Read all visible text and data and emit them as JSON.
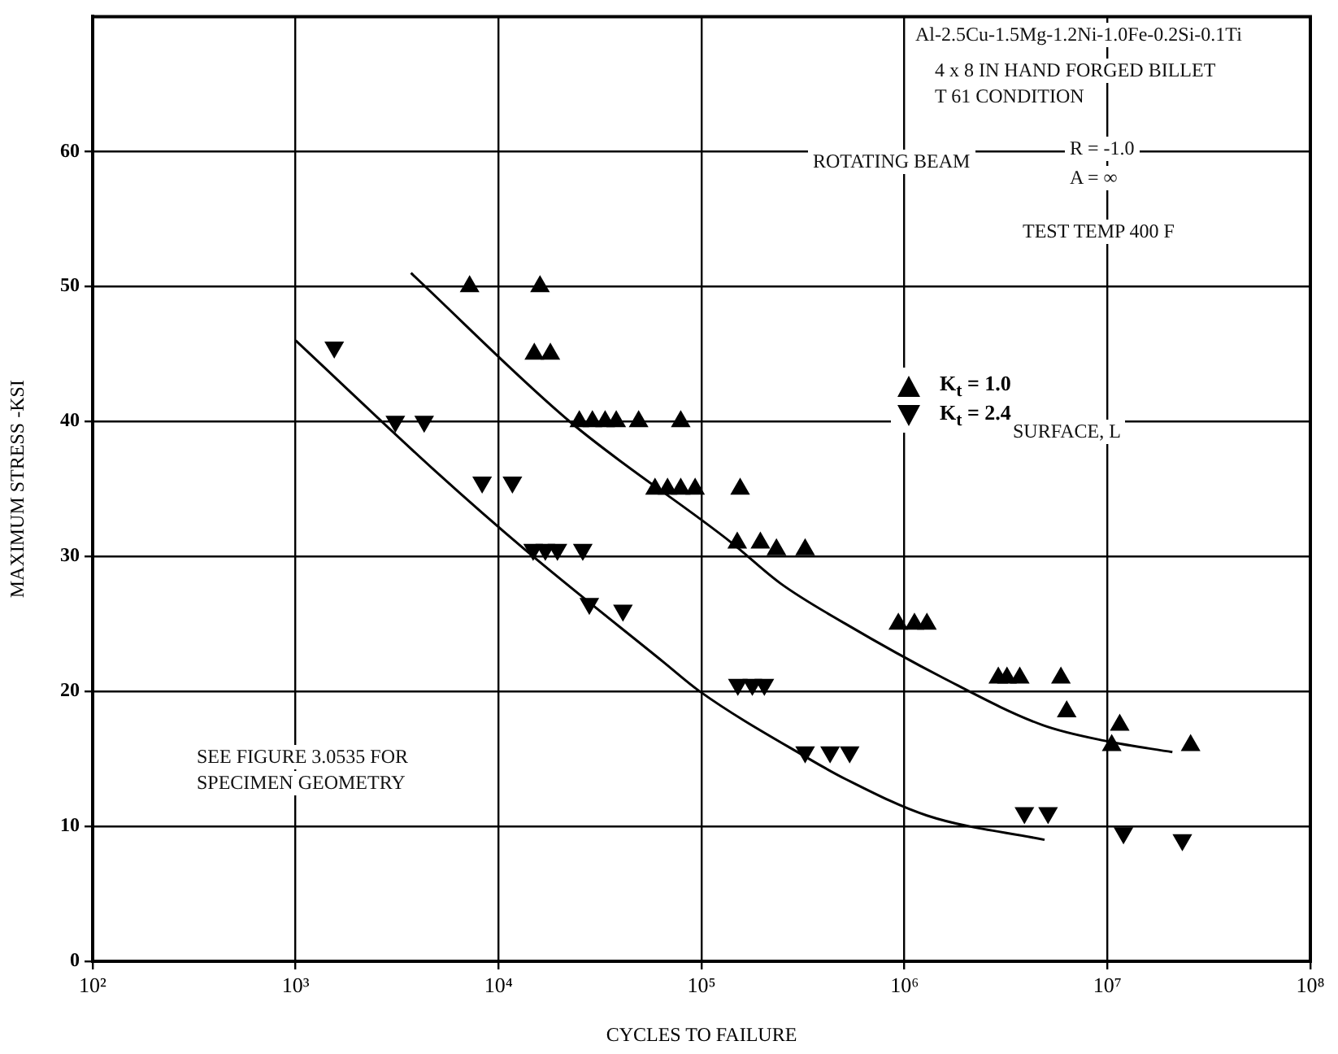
{
  "chart_data": {
    "type": "scatter",
    "xlabel": "CYCLES TO FAILURE",
    "ylabel": "MAXIMUM STRESS -KSI",
    "log": "x",
    "grid": true,
    "legend": "right",
    "line_style": "solid",
    "xlim": [
      100,
      100000000
    ],
    "xticks": [
      {
        "value": 100,
        "label": "10²"
      },
      {
        "value": 1000,
        "label": "10³"
      },
      {
        "value": 10000,
        "label": "10⁴"
      },
      {
        "value": 100000,
        "label": "10⁵"
      },
      {
        "value": 1000000,
        "label": "10⁶"
      },
      {
        "value": 10000000,
        "label": "10⁷"
      },
      {
        "value": 100000000,
        "label": "10⁸"
      }
    ],
    "ylim": [
      0,
      70
    ],
    "yticks": [
      0,
      10,
      20,
      30,
      40,
      50,
      60
    ],
    "series": [
      {
        "name": "K$_{t}$ = 1.0",
        "type": "scatter",
        "marker": "triangle",
        "color": "#000000",
        "x": [
          7200,
          16000,
          15000,
          18000,
          25000,
          29000,
          33500,
          38000,
          49000,
          79000,
          59000,
          68000,
          79000,
          93000,
          155000,
          150000,
          195000,
          234000,
          324000,
          933000,
          1120000,
          1290000,
          2900000,
          3200000,
          3700000,
          5900000,
          6300000,
          11500000,
          10500000,
          25700000
        ],
        "values": [
          50,
          50,
          45,
          45,
          40,
          40,
          40,
          40,
          40,
          40,
          35,
          35,
          35,
          35,
          35,
          31,
          31,
          30.5,
          30.5,
          25,
          25,
          25,
          21,
          21,
          21,
          21,
          18.5,
          17.5,
          16,
          16
        ]
      },
      {
        "name": "K$_{t}$ = 2.4",
        "type": "scatter",
        "marker": "triangle_down",
        "color": "#000000",
        "x": [
          1550,
          3100,
          4300,
          8300,
          11700,
          14800,
          17000,
          19500,
          26000,
          28000,
          41000,
          151000,
          178000,
          204000,
          324000,
          430000,
          537000,
          3900000,
          5100000,
          12000000,
          23400000
        ],
        "values": [
          45.5,
          40,
          40,
          35.5,
          35.5,
          30.5,
          30.5,
          30.5,
          30.5,
          26.5,
          26,
          20.5,
          20.5,
          20.5,
          15.5,
          15.5,
          15.5,
          11,
          11,
          9.5,
          9
        ]
      },
      {
        "type": "line",
        "marker": "none",
        "color": "#000000",
        "x": [
          3700,
          22400,
          141000,
          245000,
          513000,
          1550000,
          4800000,
          10000000,
          20900000
        ],
        "values": [
          51,
          40,
          31,
          28,
          25,
          21,
          17.5,
          16.3,
          15.5
        ]
      },
      {
        "type": "line",
        "marker": "none",
        "color": "#000000",
        "x": [
          1000,
          4900,
          13500,
          64600,
          98000,
          339000,
          513000,
          1290000,
          4900000
        ],
        "values": [
          46,
          36.3,
          30.5,
          22.2,
          20,
          15,
          13.5,
          10.8,
          9
        ]
      }
    ],
    "annotations": [
      "Al-2.5Cu-1.5Mg-1.2Ni-1.0Fe-0.2Si-0.1Ti",
      "4 x 8 IN HAND FORGED BILLET",
      "T 61 CONDITION",
      "ROTATING BEAM",
      "R = -1.0",
      "A = ∞",
      "TEST TEMP 400 F",
      "SURFACE, L",
      "SEE FIGURE 3.0535 FOR",
      "SPECIMEN GEOMETRY"
    ]
  }
}
